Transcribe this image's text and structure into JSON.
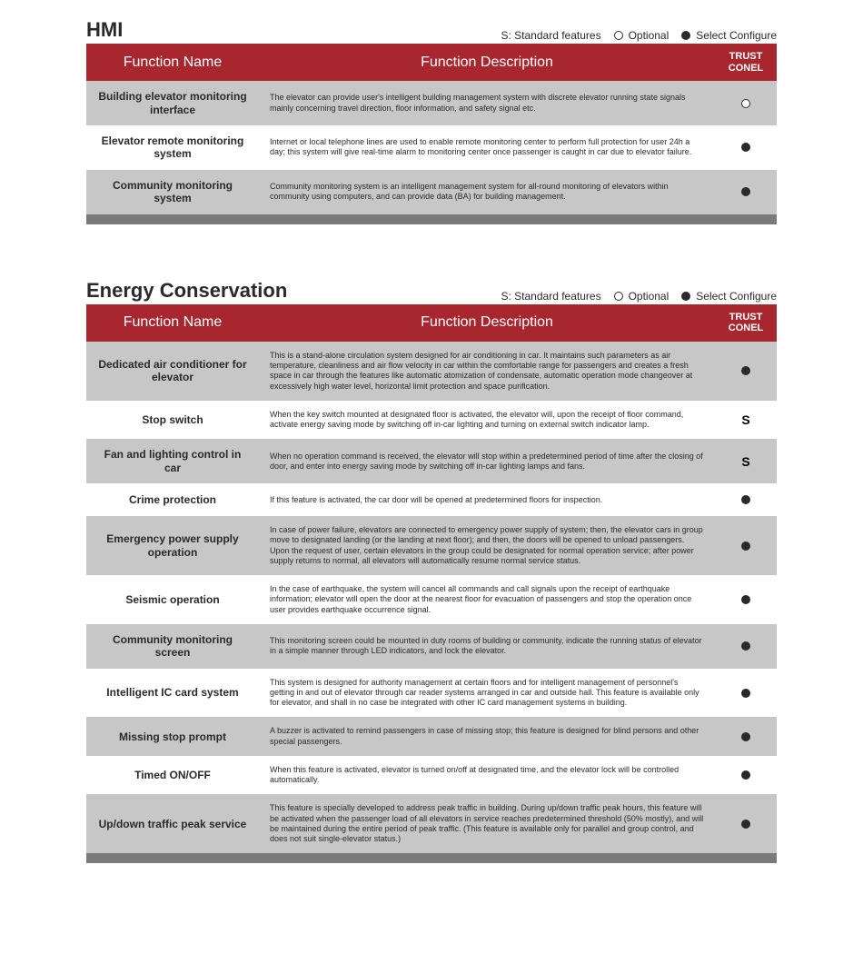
{
  "colors": {
    "header_bg": "#a8262e",
    "header_text": "#ffffff",
    "row_alt_bg": "#c7c7c7",
    "row_plain_bg": "#ffffff",
    "footer_bar": "#7a7a7a",
    "text": "#2a2a2a"
  },
  "legend": {
    "standard": "S: Standard features",
    "optional": "Optional",
    "select": "Select Configure"
  },
  "columns": {
    "name": "Function Name",
    "desc": "Function Description",
    "trust": "TRUST CONEL"
  },
  "sections": [
    {
      "title": "HMI",
      "rows": [
        {
          "name": "Building elevator monitoring interface",
          "desc": "The elevator can provide user's intelligent building management system with discrete elevator running state signals mainly concerning travel direction, floor information, and safety signal etc.",
          "trust": "optional"
        },
        {
          "name": "Elevator remote monitoring system",
          "desc": "Internet or local telephone lines are used to enable remote monitoring center to perform full protection for user 24h a day; this system will give real-time alarm to monitoring center once passenger is caught in car due to elevator failure.",
          "trust": "select"
        },
        {
          "name": "Community monitoring system",
          "desc": "Community monitoring system is an intelligent management system for all-round monitoring of elevators within community using computers, and can provide data (BA) for building management.",
          "trust": "select"
        }
      ]
    },
    {
      "title": "Energy Conservation",
      "rows": [
        {
          "name": "Dedicated air conditioner for elevator",
          "desc": "This is a stand-alone circulation system designed for air conditioning in car. It maintains such parameters as air temperature, cleanliness and air flow velocity in car within the comfortable range for passengers and creates a fresh space in car through the features like automatic atomization of condensate, automatic operation mode changeover at excessively high water level, horizontal limit protection and space purification.",
          "trust": "select"
        },
        {
          "name": "Stop switch",
          "desc": "When the key switch mounted at designated floor is activated, the elevator will, upon the receipt of floor command, activate energy saving mode by switching off in-car lighting and turning on external switch indicator lamp.",
          "trust": "standard"
        },
        {
          "name": "Fan and lighting control in car",
          "desc": "When no operation command is received, the elevator will stop within a predetermined period of time after the closing of door, and enter into energy saving mode by switching off in-car lighting lamps and fans.",
          "trust": "standard"
        },
        {
          "name": "Crime protection",
          "desc": "If this feature is activated, the car door will be opened at predetermined floors for inspection.",
          "trust": "select"
        },
        {
          "name": "Emergency power supply operation",
          "desc": "In case of power failure, elevators are connected to emergency power supply of system; then, the elevator cars in group move to designated landing (or the landing at next floor); and then, the doors will be opened to unload passengers. Upon the request of user, certain elevators in the group could be designated for normal operation service; after power supply returns to normal, all elevators will automatically resume normal service status.",
          "trust": "select"
        },
        {
          "name": "Seismic operation",
          "desc": "In the case of earthquake, the system will cancel all commands and call signals upon the receipt of earthquake information; elevator will open the door at the nearest floor for evacuation of passengers and stop the operation once user provides earthquake occurrence signal.",
          "trust": "select"
        },
        {
          "name": "Community monitoring screen",
          "desc": "This monitoring screen could be mounted in duty rooms of building or community, indicate the running status of elevator in a simple manner through LED indicators, and lock the elevator.",
          "trust": "select"
        },
        {
          "name": "Intelligent IC card system",
          "desc": "This system is designed for authority management at certain floors and for intelligent management of personnel's getting in and out of elevator through car reader systems arranged in car and outside hall. This feature is available only for elevator, and shall in no case be integrated with other IC card management systems in building.",
          "trust": "select"
        },
        {
          "name": "Missing stop prompt",
          "desc": "A buzzer is activated to remind passengers in case of missing stop; this feature is designed for blind persons and other special passengers.",
          "trust": "select"
        },
        {
          "name": "Timed ON/OFF",
          "desc": "When this feature is activated, elevator is turned on/off at designated time, and the elevator lock will be controlled automatically.",
          "trust": "select"
        },
        {
          "name": "Up/down traffic peak service",
          "desc": "This feature is specially developed to address peak traffic in building. During up/down traffic peak hours, this feature will be activated when the passenger load of all elevators in service reaches predetermined threshold (50% mostly), and will be maintained during the entire period of peak traffic. (This feature is available only for parallel and group control, and does not suit single-elevator status.)",
          "trust": "select"
        }
      ]
    }
  ]
}
